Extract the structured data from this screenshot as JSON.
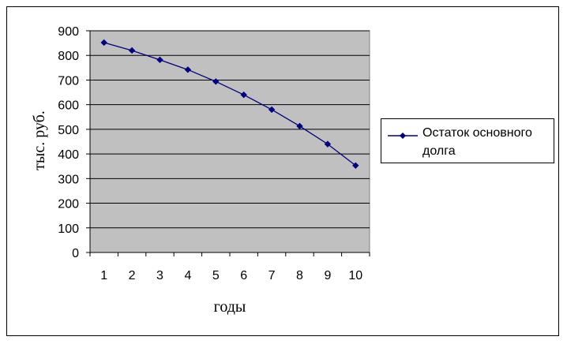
{
  "chart_data": {
    "type": "line",
    "x": [
      1,
      2,
      3,
      4,
      5,
      6,
      7,
      8,
      9,
      10
    ],
    "series": [
      {
        "name": "Остаток основного долга",
        "values": [
          852,
          820,
          782,
          742,
          694,
          640,
          580,
          513,
          440,
          353
        ],
        "color": "#000080",
        "marker": "diamond"
      }
    ],
    "title": "",
    "xlabel": "годы",
    "ylabel": "тыс. руб.",
    "xticks": [
      "1",
      "2",
      "3",
      "4",
      "5",
      "6",
      "7",
      "8",
      "9",
      "10"
    ],
    "yticks": [
      "0",
      "100",
      "200",
      "300",
      "400",
      "500",
      "600",
      "700",
      "800",
      "900"
    ],
    "ylim": [
      0,
      900
    ],
    "grid": true,
    "plot_background": "#c0c0c0",
    "legend_position": "right"
  }
}
